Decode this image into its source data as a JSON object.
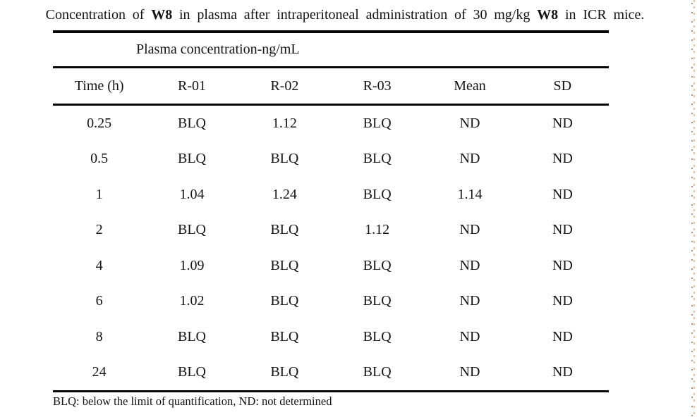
{
  "title": {
    "part1": "Concentration of ",
    "bold1": "W8",
    "part2": " in plasma after intraperitoneal administration of 30 mg/kg ",
    "bold2": "W8",
    "part3": " in ICR mice."
  },
  "table": {
    "span_header": "Plasma concentration-ng/mL",
    "columns": [
      "Time (h)",
      "R-01",
      "R-02",
      "R-03",
      "Mean",
      "SD"
    ],
    "rows": [
      {
        "cells": [
          "0.25",
          "BLQ",
          "1.12",
          "BLQ",
          "ND",
          "ND"
        ]
      },
      {
        "cells": [
          "0.5",
          "BLQ",
          "BLQ",
          "BLQ",
          "ND",
          "ND"
        ]
      },
      {
        "cells": [
          "1",
          "1.04",
          "1.24",
          "BLQ",
          "1.14",
          "ND"
        ]
      },
      {
        "cells": [
          "2",
          "BLQ",
          "BLQ",
          "1.12",
          "ND",
          "ND"
        ]
      },
      {
        "cells": [
          "4",
          "1.09",
          "BLQ",
          "BLQ",
          "ND",
          "ND"
        ]
      },
      {
        "cells": [
          "6",
          "1.02",
          "BLQ",
          "BLQ",
          "ND",
          "ND"
        ]
      },
      {
        "cells": [
          "8",
          "BLQ",
          "BLQ",
          "BLQ",
          "ND",
          "ND"
        ]
      },
      {
        "cells": [
          "24",
          "BLQ",
          "BLQ",
          "BLQ",
          "ND",
          "ND"
        ]
      }
    ]
  },
  "footnote": "BLQ: below the limit of quantification, ND: not determined",
  "colors": {
    "rule": "#050505",
    "text": "#141414",
    "edge_dots_light": "#eec09a",
    "edge_dots_dark": "#9c6a52"
  }
}
